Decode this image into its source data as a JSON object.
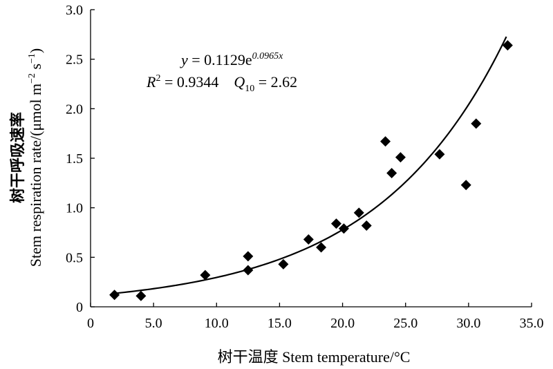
{
  "chart_data": {
    "type": "scatter",
    "xlabel": "树干温度 Stem temperature/°C",
    "ylabel": "树干呼吸速率/(μmol m⁻² s⁻¹)",
    "ylabel_cn": "树干呼吸速率",
    "ylabel_en": "Stem respiration rate/(μmol m",
    "ylabel_sup1": "−2",
    "ylabel_mid": " s",
    "ylabel_sup2": "−1",
    "ylabel_end": ")",
    "xlim": [
      0,
      35
    ],
    "ylim": [
      0,
      3.0
    ],
    "x_ticks": [
      0,
      5,
      10,
      15,
      20,
      25,
      30,
      35
    ],
    "x_tick_labels": [
      "0",
      "5.0",
      "10.0",
      "15.0",
      "20.0",
      "25.0",
      "30.0",
      "35.0"
    ],
    "y_ticks": [
      0,
      0.5,
      1.0,
      1.5,
      2.0,
      2.5,
      3.0
    ],
    "y_tick_labels": [
      "0",
      "0.5",
      "1.0",
      "1.5",
      "2.0",
      "2.5",
      "3.0"
    ],
    "grid": false,
    "marker": "diamond",
    "series": [
      {
        "x": [
          1.9,
          4.0,
          9.1,
          12.5,
          12.5,
          15.3,
          17.3,
          18.3,
          19.5,
          20.1,
          21.3,
          21.9,
          23.4,
          23.9,
          24.6,
          27.7,
          29.8,
          30.6,
          33.1
        ],
        "y": [
          0.12,
          0.11,
          0.32,
          0.37,
          0.51,
          0.43,
          0.68,
          0.6,
          0.84,
          0.79,
          0.95,
          0.82,
          1.67,
          1.35,
          1.51,
          1.54,
          1.23,
          1.85,
          2.64
        ]
      }
    ],
    "fit": {
      "a": 0.1129,
      "b": 0.0965,
      "x_range": [
        1.9,
        33.0
      ],
      "eq_y": "y",
      "eq_equals": " = 0.1129e",
      "eq_exp": "0.0965x",
      "r2_label": "R",
      "r2_sup": "2",
      "r2_value": " = 0.9344",
      "q_label": "Q",
      "q_sub": "10",
      "q_value": " = 2.62"
    }
  }
}
